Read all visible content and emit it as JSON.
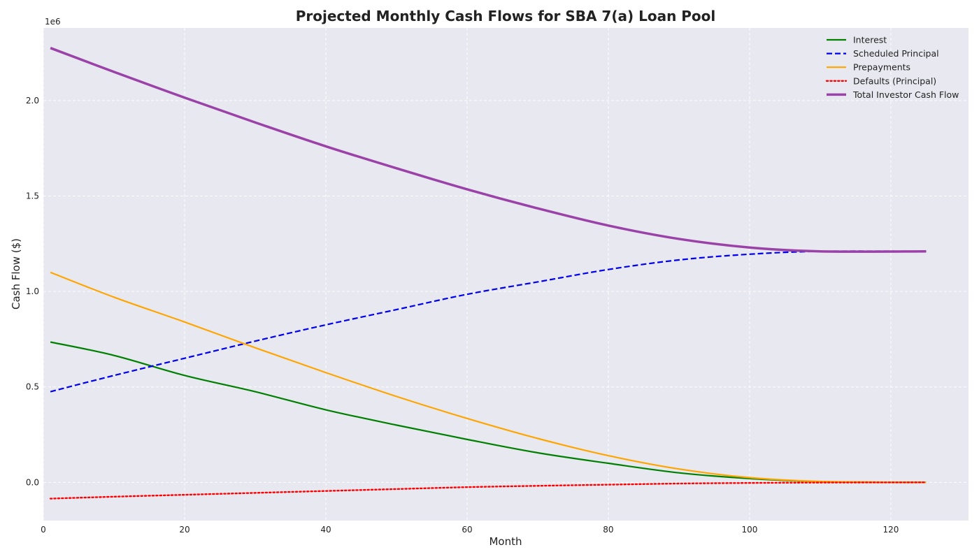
{
  "chart_data": {
    "type": "line",
    "title": "Projected Monthly Cash Flows for SBA 7(a) Loan Pool",
    "xlabel": "Month",
    "ylabel": "Cash Flow ($)",
    "y_offset_label": "1e6",
    "xlim": [
      0,
      131
    ],
    "ylim": [
      -0.2,
      2.38
    ],
    "y_unit_scale": 1000000,
    "x_ticks": [
      0,
      20,
      40,
      60,
      80,
      100,
      120
    ],
    "y_ticks": [
      0.0,
      0.5,
      1.0,
      1.5,
      2.0
    ],
    "y_tick_labels": [
      "0.0",
      "0.5",
      "1.0",
      "1.5",
      "2.0"
    ],
    "grid": true,
    "legend_position": "top-right",
    "background_color": "#e8e8f1",
    "series": [
      {
        "name": "Interest",
        "color": "#008000",
        "dash": "solid",
        "width": 2.2,
        "points": [
          [
            1,
            0.735
          ],
          [
            10,
            0.665
          ],
          [
            20,
            0.56
          ],
          [
            30,
            0.475
          ],
          [
            40,
            0.38
          ],
          [
            50,
            0.3
          ],
          [
            60,
            0.225
          ],
          [
            70,
            0.155
          ],
          [
            80,
            0.1
          ],
          [
            90,
            0.05
          ],
          [
            100,
            0.02
          ],
          [
            110,
            0.004
          ],
          [
            125,
            0.0
          ]
        ]
      },
      {
        "name": "Scheduled Principal",
        "color": "#0000ee",
        "dash": "dashed",
        "width": 2.2,
        "points": [
          [
            1,
            0.475
          ],
          [
            10,
            0.56
          ],
          [
            20,
            0.65
          ],
          [
            30,
            0.74
          ],
          [
            40,
            0.825
          ],
          [
            50,
            0.905
          ],
          [
            60,
            0.985
          ],
          [
            70,
            1.05
          ],
          [
            80,
            1.115
          ],
          [
            90,
            1.165
          ],
          [
            100,
            1.195
          ],
          [
            110,
            1.21
          ],
          [
            125,
            1.21
          ]
        ]
      },
      {
        "name": "Prepayments",
        "color": "#ffa500",
        "dash": "solid",
        "width": 2.2,
        "points": [
          [
            1,
            1.1
          ],
          [
            10,
            0.97
          ],
          [
            20,
            0.84
          ],
          [
            30,
            0.705
          ],
          [
            40,
            0.575
          ],
          [
            50,
            0.45
          ],
          [
            60,
            0.335
          ],
          [
            70,
            0.23
          ],
          [
            80,
            0.14
          ],
          [
            90,
            0.07
          ],
          [
            100,
            0.025
          ],
          [
            110,
            0.005
          ],
          [
            125,
            0.0
          ]
        ]
      },
      {
        "name": "Defaults (Principal)",
        "color": "#ff0000",
        "dash": "dotted",
        "width": 2.4,
        "points": [
          [
            1,
            -0.085
          ],
          [
            10,
            -0.075
          ],
          [
            20,
            -0.065
          ],
          [
            30,
            -0.055
          ],
          [
            40,
            -0.045
          ],
          [
            50,
            -0.035
          ],
          [
            60,
            -0.025
          ],
          [
            70,
            -0.018
          ],
          [
            80,
            -0.012
          ],
          [
            90,
            -0.006
          ],
          [
            100,
            -0.003
          ],
          [
            110,
            -0.001
          ],
          [
            125,
            0.0
          ]
        ]
      },
      {
        "name": "Total Investor Cash Flow",
        "color": "#9b42a8",
        "dash": "solid",
        "width": 3.5,
        "points": [
          [
            1,
            2.275
          ],
          [
            10,
            2.15
          ],
          [
            20,
            2.015
          ],
          [
            30,
            1.885
          ],
          [
            40,
            1.76
          ],
          [
            50,
            1.645
          ],
          [
            60,
            1.535
          ],
          [
            70,
            1.435
          ],
          [
            80,
            1.345
          ],
          [
            90,
            1.275
          ],
          [
            100,
            1.23
          ],
          [
            110,
            1.21
          ],
          [
            125,
            1.21
          ]
        ]
      }
    ]
  }
}
